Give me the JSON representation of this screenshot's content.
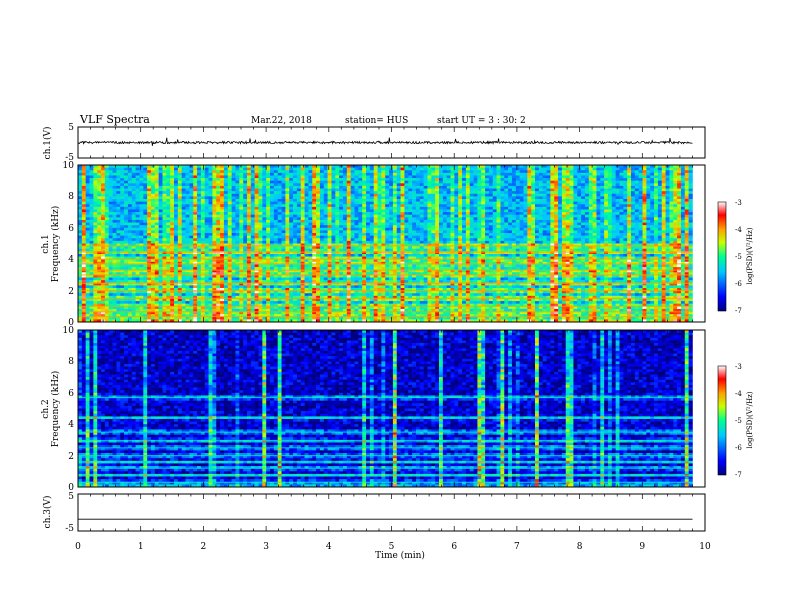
{
  "header": {
    "title": "VLF Spectra",
    "date": "Mar.22, 2018",
    "station": "station= HUS",
    "start": "start  UT =   3 : 30: 2"
  },
  "chart_data": [
    {
      "type": "line",
      "panel": "ch1-waveform",
      "ylabel": "ch.1(V)",
      "ylim": [
        -5,
        5
      ],
      "yticks": [
        "5",
        "-5"
      ],
      "xlim": [
        0,
        10
      ],
      "description_values": {
        "baseline_v": 0.0,
        "noise_amplitude_v": 0.6,
        "max_spike_v": 3.0
      }
    },
    {
      "type": "heatmap",
      "panel": "ch1-spectrogram",
      "ylabel": "ch.1\nFrequency (kHz)",
      "ylim": [
        0,
        10
      ],
      "yticks": [
        "0",
        "2",
        "4",
        "6",
        "8",
        "10"
      ],
      "xlim": [
        0,
        10
      ],
      "data_end_min": 9.8,
      "colorbar": {
        "label": "log(PSD)(V²/Hz)",
        "range": [
          -7,
          -3
        ],
        "ticks": [
          "-3",
          "-4",
          "-5",
          "-6",
          "-7"
        ]
      },
      "bands_khz": [
        0.35,
        0.65,
        1.0,
        1.5,
        2.0,
        2.45,
        3.0,
        3.3,
        3.7,
        4.0,
        4.45,
        4.85
      ],
      "background_log_psd": -5.6
    },
    {
      "type": "heatmap",
      "panel": "ch2-spectrogram",
      "ylabel": "ch.2\nFrequency (kHz)",
      "ylim": [
        0,
        10
      ],
      "yticks": [
        "0",
        "2",
        "4",
        "6",
        "8",
        "10"
      ],
      "xlim": [
        0,
        10
      ],
      "data_end_min": 9.8,
      "colorbar": {
        "label": "log(PSD)(V²/Hz)",
        "range": [
          -7,
          -3
        ],
        "ticks": [
          "-3",
          "-4",
          "-5",
          "-6",
          "-7"
        ]
      },
      "bands_khz": [
        0.3,
        0.75,
        1.2,
        1.6,
        2.0,
        2.5,
        2.95,
        3.5,
        4.4,
        5.7
      ],
      "background_log_psd": -6.7
    },
    {
      "type": "line",
      "panel": "ch3-waveform",
      "ylabel": "ch.3(V)",
      "ylim": [
        -5,
        5
      ],
      "yticks": [
        "5",
        "-5"
      ],
      "xlim": [
        0,
        10
      ],
      "description_values": {
        "constant_v": -1.8
      }
    }
  ],
  "xaxis": {
    "label": "Time (min)",
    "ticks": [
      "0",
      "1",
      "2",
      "3",
      "4",
      "5",
      "6",
      "7",
      "8",
      "9",
      "10"
    ]
  }
}
